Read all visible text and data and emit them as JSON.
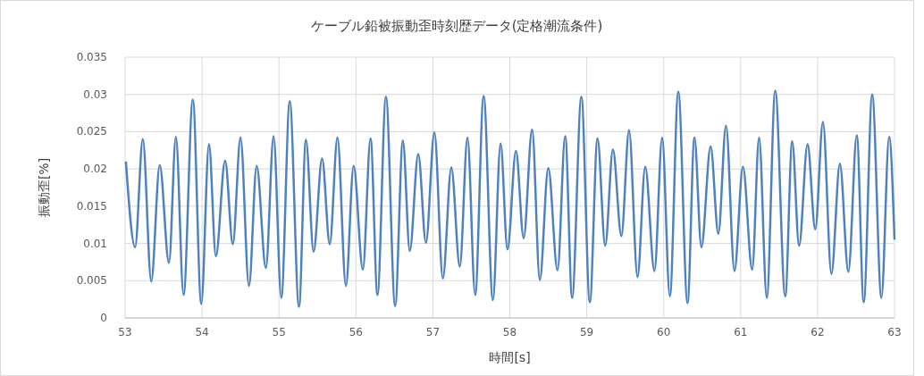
{
  "chart_data": {
    "type": "line",
    "title": "ケーブル鉛被振動歪時刻歴データ(定格潮流条件)",
    "xlabel": "時間[s]",
    "ylabel": "振動歪[%]",
    "xlim": [
      53,
      63
    ],
    "xticks": [
      53,
      54,
      55,
      56,
      57,
      58,
      59,
      60,
      61,
      62,
      63
    ],
    "ylim": [
      0,
      0.035
    ],
    "yticks": [
      0,
      0.005,
      0.01,
      0.015,
      0.02,
      0.025,
      0.03,
      0.035
    ],
    "grid": true,
    "marker": "none",
    "line_style": "solid",
    "series": [
      {
        "color": "#4f81bd",
        "x": [
          53.01,
          53.13,
          53.23,
          53.34,
          53.45,
          53.57,
          53.66,
          53.76,
          53.88,
          53.99,
          54.09,
          54.18,
          54.3,
          54.4,
          54.5,
          54.61,
          54.71,
          54.83,
          54.93,
          55.03,
          55.14,
          55.26,
          55.35,
          55.45,
          55.56,
          55.66,
          55.76,
          55.87,
          55.97,
          56.09,
          56.19,
          56.28,
          56.39,
          56.51,
          56.61,
          56.7,
          56.81,
          56.91,
          57.02,
          57.13,
          57.24,
          57.35,
          57.45,
          57.55,
          57.66,
          57.78,
          57.88,
          57.97,
          58.08,
          58.18,
          58.29,
          58.39,
          58.5,
          58.62,
          58.72,
          58.81,
          58.93,
          59.04,
          59.14,
          59.24,
          59.34,
          59.45,
          59.55,
          59.66,
          59.76,
          59.88,
          59.98,
          60.08,
          60.19,
          60.31,
          60.4,
          60.49,
          60.61,
          60.71,
          60.81,
          60.92,
          61.03,
          61.15,
          61.24,
          61.34,
          61.45,
          61.58,
          61.67,
          61.76,
          61.87,
          61.97,
          62.07,
          62.18,
          62.29,
          62.4,
          62.51,
          62.6,
          62.71,
          62.83,
          62.93,
          63
        ],
        "values": [
          0.021,
          0.0095,
          0.024,
          0.0049,
          0.0205,
          0.0074,
          0.0243,
          0.0031,
          0.0293,
          0.0019,
          0.0233,
          0.0083,
          0.0211,
          0.0099,
          0.0242,
          0.0043,
          0.0204,
          0.0067,
          0.0244,
          0.0027,
          0.0291,
          0.0015,
          0.0239,
          0.0089,
          0.0214,
          0.0099,
          0.0242,
          0.0043,
          0.0204,
          0.0065,
          0.0241,
          0.0031,
          0.0297,
          0.0016,
          0.0238,
          0.009,
          0.022,
          0.0101,
          0.0249,
          0.0053,
          0.0202,
          0.0069,
          0.0242,
          0.0031,
          0.0298,
          0.0024,
          0.0234,
          0.0092,
          0.0224,
          0.0107,
          0.0253,
          0.0051,
          0.0201,
          0.0064,
          0.0244,
          0.0027,
          0.0297,
          0.0021,
          0.0241,
          0.0097,
          0.0226,
          0.011,
          0.0252,
          0.0055,
          0.0203,
          0.0063,
          0.0242,
          0.0029,
          0.0304,
          0.002,
          0.0242,
          0.0095,
          0.023,
          0.0113,
          0.0258,
          0.0063,
          0.0203,
          0.0065,
          0.0242,
          0.0027,
          0.0305,
          0.0029,
          0.0237,
          0.0097,
          0.0233,
          0.0119,
          0.0263,
          0.0059,
          0.0207,
          0.0062,
          0.0245,
          0.0021,
          0.03,
          0.0027,
          0.0243,
          0.0105
        ]
      }
    ]
  }
}
